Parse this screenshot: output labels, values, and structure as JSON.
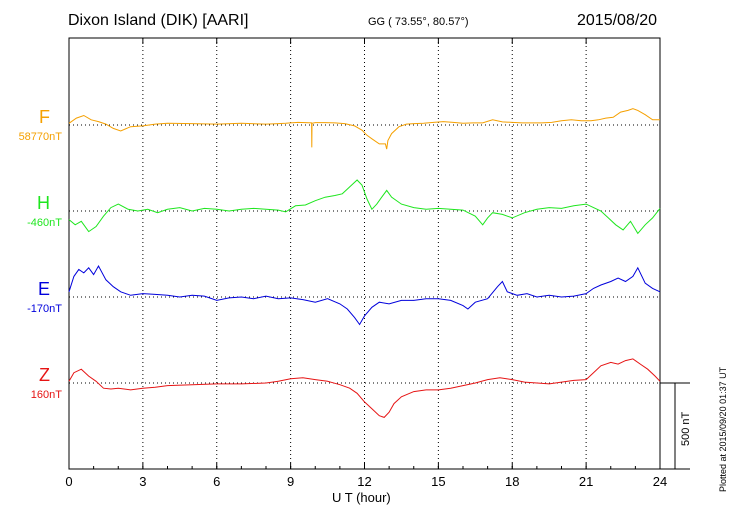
{
  "header": {
    "station": "Dixon Island (DIK)  [AARI]",
    "coords": "GG ( 73.55°,  80.57°)",
    "date": "2015/08/20"
  },
  "footer": {
    "plotted": "Plotted at 2015/09/20 01:37 UT",
    "scale_label": "500 nT"
  },
  "chart_data": {
    "type": "line",
    "title": "Dixon Island (DIK)  [AARI]",
    "xlabel": "U T (hour)",
    "ylabel": "",
    "xlim": [
      0,
      24
    ],
    "xticks": [
      "0",
      "3",
      "6",
      "9",
      "12",
      "15",
      "18",
      "21",
      "24"
    ],
    "grid": true,
    "scale_bar_nT": 500,
    "series": [
      {
        "name": "F",
        "baseline": "58770nT",
        "color": "#f5a000",
        "x": [
          0,
          0.3,
          0.6,
          0.9,
          1.2,
          1.5,
          1.8,
          2.1,
          2.5,
          3,
          3.5,
          4,
          5,
          6,
          7,
          8,
          8.5,
          8.8,
          9,
          9.3,
          9.6,
          9.85,
          9.86,
          9.87,
          10,
          10.4,
          10.8,
          11.2,
          11.6,
          11.9,
          12.1,
          12.3,
          12.6,
          12.85,
          12.9,
          12.95,
          13.1,
          13.4,
          13.7,
          14,
          14.4,
          14.8,
          15.2,
          15.6,
          16,
          16.4,
          16.8,
          17.2,
          17.6,
          18,
          18.4,
          18.8,
          19.2,
          19.6,
          20,
          20.4,
          20.8,
          21.2,
          21.5,
          21.8,
          22.1,
          22.4,
          22.7,
          22.9,
          23.1,
          23.4,
          23.7,
          24
        ],
        "values": [
          10,
          40,
          55,
          30,
          20,
          5,
          -20,
          -35,
          -10,
          -5,
          5,
          10,
          8,
          5,
          10,
          5,
          8,
          10,
          12,
          15,
          14,
          12,
          -130,
          10,
          14,
          14,
          12,
          8,
          -5,
          -30,
          -60,
          -80,
          -110,
          -110,
          -140,
          -90,
          -50,
          -10,
          5,
          8,
          10,
          15,
          20,
          15,
          10,
          12,
          12,
          30,
          18,
          15,
          12,
          12,
          12,
          15,
          25,
          30,
          25,
          25,
          30,
          40,
          45,
          75,
          85,
          95,
          85,
          60,
          30,
          30
        ]
      },
      {
        "name": "H",
        "baseline": "-460nT",
        "color": "#1ee61e",
        "x": [
          0,
          0.25,
          0.5,
          0.8,
          1.1,
          1.4,
          1.7,
          2,
          2.4,
          2.8,
          3.2,
          3.6,
          4,
          4.5,
          5,
          5.5,
          6,
          6.5,
          7,
          7.5,
          8,
          8.5,
          8.8,
          9.2,
          9.6,
          10,
          10.4,
          10.8,
          11.1,
          11.4,
          11.7,
          11.9,
          12.1,
          12.3,
          12.5,
          12.7,
          12.9,
          13.1,
          13.5,
          14,
          14.5,
          15,
          15.5,
          16,
          16.5,
          16.8,
          17,
          17.2,
          17.6,
          18,
          18.5,
          19,
          19.5,
          20,
          20.5,
          21,
          21.3,
          21.6,
          21.9,
          22.2,
          22.5,
          22.8,
          23.1,
          23.4,
          23.7,
          24
        ],
        "values": [
          -50,
          -80,
          -60,
          -120,
          -90,
          -30,
          20,
          40,
          10,
          0,
          10,
          -10,
          10,
          20,
          0,
          15,
          10,
          0,
          10,
          15,
          10,
          5,
          -5,
          30,
          35,
          60,
          80,
          90,
          100,
          140,
          180,
          150,
          70,
          10,
          40,
          80,
          120,
          80,
          40,
          20,
          10,
          15,
          10,
          5,
          -30,
          -80,
          -40,
          -10,
          -20,
          -40,
          -10,
          10,
          20,
          15,
          30,
          40,
          20,
          0,
          -40,
          -80,
          -110,
          -60,
          -130,
          -80,
          -40,
          15
        ]
      },
      {
        "name": "E",
        "baseline": "-170nT",
        "color": "#0000dc",
        "x": [
          0,
          0.2,
          0.4,
          0.6,
          0.8,
          1,
          1.2,
          1.5,
          1.8,
          2.1,
          2.5,
          3,
          3.5,
          4,
          4.5,
          5,
          5.5,
          6,
          6.5,
          7,
          7.5,
          8,
          8.5,
          9,
          9.5,
          10,
          10.5,
          11,
          11.3,
          11.6,
          11.8,
          12,
          12.3,
          12.6,
          13,
          13.5,
          14,
          14.5,
          15,
          15.5,
          16,
          16.2,
          16.5,
          17,
          17.4,
          17.6,
          17.8,
          18.2,
          18.6,
          19,
          19.5,
          20,
          20.5,
          21,
          21.3,
          21.6,
          22,
          22.3,
          22.6,
          22.9,
          23.1,
          23.4,
          23.7,
          24
        ],
        "values": [
          30,
          120,
          160,
          140,
          170,
          130,
          180,
          100,
          60,
          30,
          10,
          20,
          15,
          10,
          0,
          10,
          5,
          -20,
          -5,
          0,
          -10,
          5,
          -10,
          -5,
          -15,
          -30,
          -10,
          -40,
          -70,
          -120,
          -160,
          -110,
          -60,
          -30,
          -40,
          -20,
          -20,
          -10,
          -10,
          -20,
          -50,
          -70,
          -30,
          -10,
          60,
          90,
          30,
          10,
          20,
          0,
          10,
          0,
          5,
          20,
          50,
          70,
          90,
          110,
          90,
          120,
          170,
          80,
          50,
          30
        ]
      },
      {
        "name": "Z",
        "baseline": "160nT",
        "color": "#e61414",
        "x": [
          0,
          0.2,
          0.5,
          0.8,
          1.1,
          1.4,
          1.7,
          2,
          2.5,
          3,
          3.5,
          4,
          5,
          6,
          7,
          8,
          8.5,
          9,
          9.5,
          10,
          10.5,
          11,
          11.4,
          11.7,
          12,
          12.3,
          12.6,
          12.8,
          13,
          13.2,
          13.5,
          14,
          14.5,
          15,
          15.5,
          16,
          16.5,
          17,
          17.5,
          18,
          18.5,
          19,
          19.5,
          20,
          20.5,
          21,
          21.3,
          21.6,
          22,
          22.3,
          22.6,
          22.9,
          23.2,
          23.5,
          23.8,
          24
        ],
        "values": [
          10,
          60,
          80,
          40,
          10,
          -30,
          -35,
          -30,
          -40,
          -30,
          -25,
          -15,
          -10,
          -5,
          -5,
          0,
          10,
          25,
          30,
          20,
          10,
          -10,
          -30,
          -60,
          -110,
          -150,
          -190,
          -200,
          -170,
          -120,
          -80,
          -50,
          -40,
          -40,
          -30,
          -15,
          0,
          20,
          30,
          20,
          5,
          0,
          -5,
          5,
          15,
          20,
          60,
          100,
          120,
          110,
          130,
          140,
          110,
          80,
          40,
          10
        ]
      }
    ]
  }
}
